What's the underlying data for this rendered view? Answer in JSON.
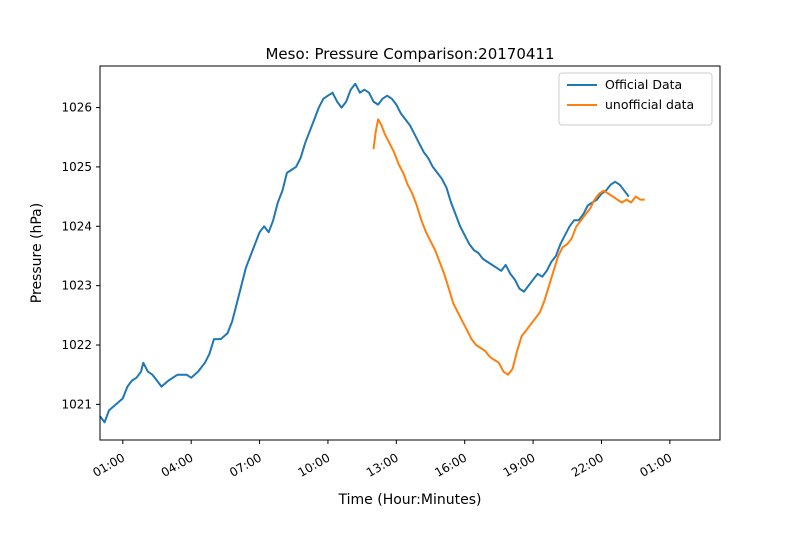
{
  "chart_data": {
    "type": "line",
    "title": "Meso: Pressure Comparison:20170411",
    "xlabel": "Time (Hour:Minutes)",
    "ylabel": "Pressure (hPa)",
    "x_unit": "hours",
    "xlim": [
      -1.0,
      26.2
    ],
    "ylim": [
      1020.4,
      1026.7
    ],
    "x_ticks": [
      {
        "x": 0,
        "label": "01:00"
      },
      {
        "x": 3,
        "label": "04:00"
      },
      {
        "x": 6,
        "label": "07:00"
      },
      {
        "x": 9,
        "label": "10:00"
      },
      {
        "x": 12,
        "label": "13:00"
      },
      {
        "x": 15,
        "label": "16:00"
      },
      {
        "x": 18,
        "label": "19:00"
      },
      {
        "x": 21,
        "label": "22:00"
      },
      {
        "x": 24,
        "label": "01:00"
      }
    ],
    "y_ticks": [
      1021,
      1022,
      1023,
      1024,
      1025,
      1026
    ],
    "grid": false,
    "legend_position": "upper right",
    "series": [
      {
        "name": "Official Data",
        "color": "#1f77b4",
        "points": [
          [
            -1.0,
            1020.8
          ],
          [
            -0.8,
            1020.7
          ],
          [
            -0.6,
            1020.9
          ],
          [
            -0.3,
            1021.0
          ],
          [
            0,
            1021.1
          ],
          [
            0.2,
            1021.3
          ],
          [
            0.4,
            1021.4
          ],
          [
            0.6,
            1021.45
          ],
          [
            0.8,
            1021.55
          ],
          [
            0.9,
            1021.7
          ],
          [
            1.1,
            1021.55
          ],
          [
            1.3,
            1021.5
          ],
          [
            1.5,
            1021.4
          ],
          [
            1.7,
            1021.3
          ],
          [
            2.0,
            1021.4
          ],
          [
            2.4,
            1021.5
          ],
          [
            2.8,
            1021.5
          ],
          [
            3.0,
            1021.45
          ],
          [
            3.3,
            1021.55
          ],
          [
            3.6,
            1021.7
          ],
          [
            3.8,
            1021.85
          ],
          [
            4.0,
            1022.1
          ],
          [
            4.3,
            1022.1
          ],
          [
            4.6,
            1022.2
          ],
          [
            4.8,
            1022.4
          ],
          [
            5.0,
            1022.7
          ],
          [
            5.2,
            1023.0
          ],
          [
            5.4,
            1023.3
          ],
          [
            5.6,
            1023.5
          ],
          [
            5.8,
            1023.7
          ],
          [
            6.0,
            1023.9
          ],
          [
            6.2,
            1024.0
          ],
          [
            6.4,
            1023.9
          ],
          [
            6.6,
            1024.1
          ],
          [
            6.8,
            1024.4
          ],
          [
            7.0,
            1024.6
          ],
          [
            7.2,
            1024.9
          ],
          [
            7.4,
            1024.95
          ],
          [
            7.6,
            1025.0
          ],
          [
            7.8,
            1025.15
          ],
          [
            8.0,
            1025.4
          ],
          [
            8.2,
            1025.6
          ],
          [
            8.4,
            1025.8
          ],
          [
            8.6,
            1026.0
          ],
          [
            8.8,
            1026.15
          ],
          [
            9.0,
            1026.2
          ],
          [
            9.2,
            1026.25
          ],
          [
            9.4,
            1026.1
          ],
          [
            9.6,
            1026.0
          ],
          [
            9.8,
            1026.1
          ],
          [
            10.0,
            1026.3
          ],
          [
            10.2,
            1026.4
          ],
          [
            10.4,
            1026.25
          ],
          [
            10.6,
            1026.3
          ],
          [
            10.8,
            1026.25
          ],
          [
            11.0,
            1026.1
          ],
          [
            11.2,
            1026.05
          ],
          [
            11.4,
            1026.15
          ],
          [
            11.6,
            1026.2
          ],
          [
            11.8,
            1026.15
          ],
          [
            12.0,
            1026.05
          ],
          [
            12.2,
            1025.9
          ],
          [
            12.4,
            1025.8
          ],
          [
            12.6,
            1025.7
          ],
          [
            12.8,
            1025.55
          ],
          [
            13.0,
            1025.4
          ],
          [
            13.2,
            1025.25
          ],
          [
            13.4,
            1025.15
          ],
          [
            13.6,
            1025.0
          ],
          [
            13.8,
            1024.9
          ],
          [
            14.0,
            1024.8
          ],
          [
            14.2,
            1024.65
          ],
          [
            14.4,
            1024.4
          ],
          [
            14.6,
            1024.2
          ],
          [
            14.8,
            1024.0
          ],
          [
            15.0,
            1023.85
          ],
          [
            15.2,
            1023.7
          ],
          [
            15.4,
            1023.6
          ],
          [
            15.6,
            1023.55
          ],
          [
            15.8,
            1023.45
          ],
          [
            16.0,
            1023.4
          ],
          [
            16.2,
            1023.35
          ],
          [
            16.4,
            1023.3
          ],
          [
            16.6,
            1023.25
          ],
          [
            16.8,
            1023.35
          ],
          [
            17.0,
            1023.2
          ],
          [
            17.2,
            1023.1
          ],
          [
            17.4,
            1022.95
          ],
          [
            17.6,
            1022.9
          ],
          [
            17.8,
            1023.0
          ],
          [
            18.0,
            1023.1
          ],
          [
            18.2,
            1023.2
          ],
          [
            18.4,
            1023.15
          ],
          [
            18.6,
            1023.25
          ],
          [
            18.8,
            1023.4
          ],
          [
            19.0,
            1023.5
          ],
          [
            19.2,
            1023.7
          ],
          [
            19.4,
            1023.85
          ],
          [
            19.6,
            1024.0
          ],
          [
            19.8,
            1024.1
          ],
          [
            20.0,
            1024.1
          ],
          [
            20.2,
            1024.2
          ],
          [
            20.4,
            1024.35
          ],
          [
            20.6,
            1024.4
          ],
          [
            20.8,
            1024.45
          ],
          [
            21.0,
            1024.55
          ],
          [
            21.2,
            1024.6
          ],
          [
            21.4,
            1024.7
          ],
          [
            21.6,
            1024.75
          ],
          [
            21.8,
            1024.7
          ],
          [
            22.0,
            1024.6
          ],
          [
            22.2,
            1024.5
          ]
        ]
      },
      {
        "name": "unofficial data",
        "color": "#ff7f0e",
        "points": [
          [
            11.0,
            1025.3
          ],
          [
            11.1,
            1025.6
          ],
          [
            11.2,
            1025.8
          ],
          [
            11.35,
            1025.7
          ],
          [
            11.5,
            1025.55
          ],
          [
            11.7,
            1025.4
          ],
          [
            11.9,
            1025.25
          ],
          [
            12.1,
            1025.05
          ],
          [
            12.3,
            1024.9
          ],
          [
            12.5,
            1024.7
          ],
          [
            12.7,
            1024.55
          ],
          [
            12.9,
            1024.35
          ],
          [
            13.1,
            1024.1
          ],
          [
            13.3,
            1023.9
          ],
          [
            13.5,
            1023.75
          ],
          [
            13.7,
            1023.6
          ],
          [
            13.9,
            1023.4
          ],
          [
            14.1,
            1023.2
          ],
          [
            14.3,
            1022.95
          ],
          [
            14.5,
            1022.7
          ],
          [
            14.7,
            1022.55
          ],
          [
            14.9,
            1022.4
          ],
          [
            15.1,
            1022.25
          ],
          [
            15.3,
            1022.1
          ],
          [
            15.5,
            1022.0
          ],
          [
            15.7,
            1021.95
          ],
          [
            15.9,
            1021.9
          ],
          [
            16.1,
            1021.8
          ],
          [
            16.3,
            1021.75
          ],
          [
            16.5,
            1021.7
          ],
          [
            16.7,
            1021.55
          ],
          [
            16.9,
            1021.5
          ],
          [
            17.1,
            1021.6
          ],
          [
            17.3,
            1021.9
          ],
          [
            17.5,
            1022.15
          ],
          [
            17.7,
            1022.25
          ],
          [
            17.9,
            1022.35
          ],
          [
            18.1,
            1022.45
          ],
          [
            18.3,
            1022.55
          ],
          [
            18.5,
            1022.75
          ],
          [
            18.7,
            1023.0
          ],
          [
            18.9,
            1023.25
          ],
          [
            19.1,
            1023.5
          ],
          [
            19.3,
            1023.65
          ],
          [
            19.5,
            1023.7
          ],
          [
            19.7,
            1023.8
          ],
          [
            19.9,
            1024.0
          ],
          [
            20.1,
            1024.1
          ],
          [
            20.3,
            1024.2
          ],
          [
            20.5,
            1024.3
          ],
          [
            20.7,
            1024.45
          ],
          [
            20.9,
            1024.55
          ],
          [
            21.1,
            1024.6
          ],
          [
            21.3,
            1024.55
          ],
          [
            21.5,
            1024.5
          ],
          [
            21.7,
            1024.45
          ],
          [
            21.9,
            1024.4
          ],
          [
            22.1,
            1024.45
          ],
          [
            22.3,
            1024.4
          ],
          [
            22.5,
            1024.5
          ],
          [
            22.7,
            1024.45
          ],
          [
            22.9,
            1024.45
          ]
        ]
      }
    ]
  }
}
